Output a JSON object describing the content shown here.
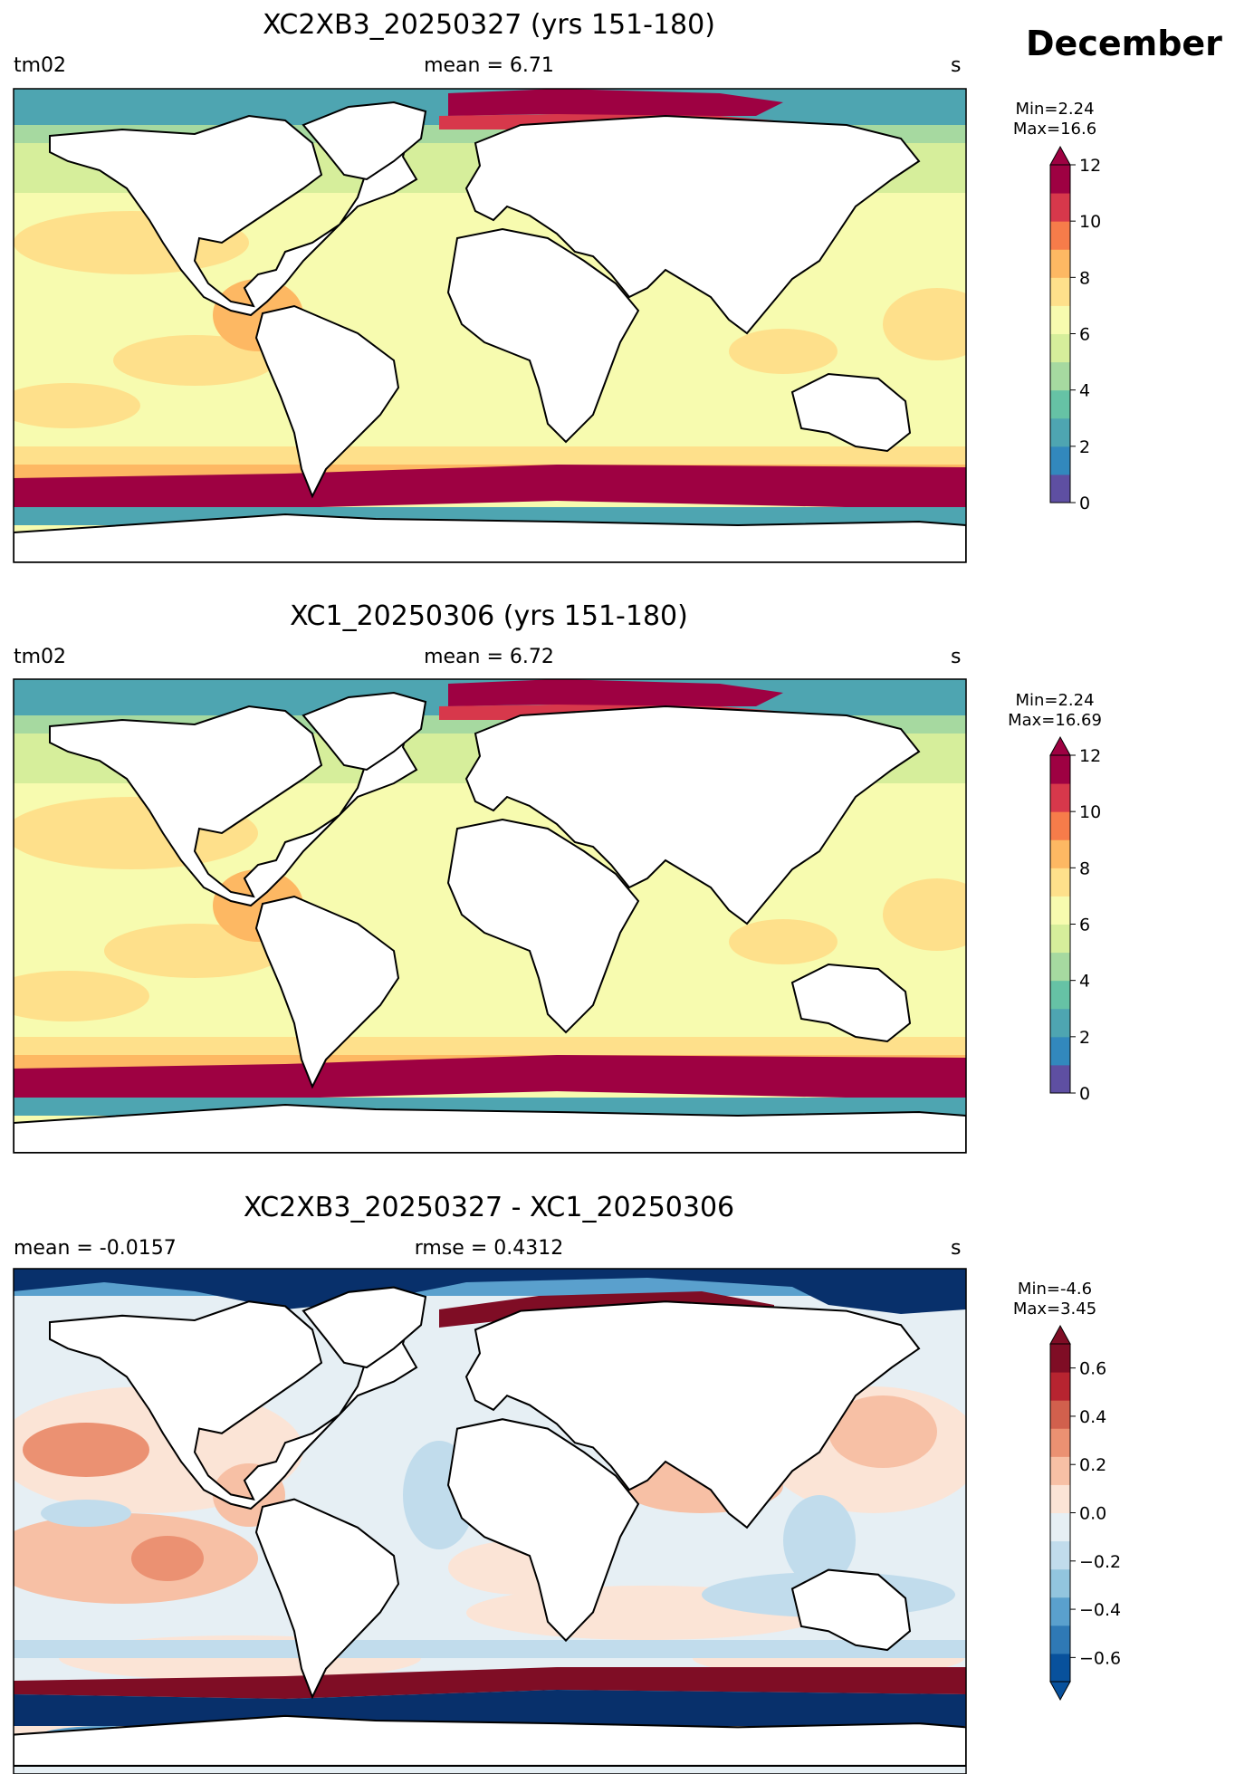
{
  "month": "December",
  "panels": [
    {
      "title": "XC2XB3_20250327 (yrs 151-180)",
      "left_label": "tm02",
      "center_label": "mean = 6.71",
      "right_label": "s",
      "min_label": "Min=2.24",
      "max_label": "Max=16.6",
      "colorbar": {
        "ticks": [
          "0",
          "2",
          "4",
          "6",
          "8",
          "10",
          "12"
        ],
        "range": [
          0,
          12
        ],
        "extend": "max",
        "colors": [
          "#5e4fa2",
          "#3288bd",
          "#4ea5b1",
          "#66c2a5",
          "#a6d9a0",
          "#d6ee9b",
          "#f7fbaf",
          "#fee08b",
          "#fdb863",
          "#f67c4a",
          "#d7384b",
          "#9e0142"
        ]
      }
    },
    {
      "title": "XC1_20250306 (yrs 151-180)",
      "left_label": "tm02",
      "center_label": "mean = 6.72",
      "right_label": "s",
      "min_label": "Min=2.24",
      "max_label": "Max=16.69",
      "colorbar": {
        "ticks": [
          "0",
          "2",
          "4",
          "6",
          "8",
          "10",
          "12"
        ],
        "range": [
          0,
          12
        ],
        "extend": "max",
        "colors": [
          "#5e4fa2",
          "#3288bd",
          "#4ea5b1",
          "#66c2a5",
          "#a6d9a0",
          "#d6ee9b",
          "#f7fbaf",
          "#fee08b",
          "#fdb863",
          "#f67c4a",
          "#d7384b",
          "#9e0142"
        ]
      }
    },
    {
      "title": "XC2XB3_20250327 - XC1_20250306",
      "left_label": "mean = -0.0157",
      "center_label": "rmse = 0.4312",
      "right_label": "s",
      "min_label": "Min=-4.6",
      "max_label": "Max=3.45",
      "colorbar": {
        "ticks": [
          "−0.6",
          "−0.4",
          "−0.2",
          "0.0",
          "0.2",
          "0.4",
          "0.6"
        ],
        "range": [
          -0.7,
          0.7
        ],
        "extend": "both",
        "colors": [
          "#08519c",
          "#2f79b5",
          "#5aa0cd",
          "#92c5de",
          "#c1dcec",
          "#e6eff4",
          "#fbe4d6",
          "#f7c0a5",
          "#eb9172",
          "#d1604d",
          "#b72430",
          "#7f0d25"
        ]
      }
    }
  ],
  "colors": {
    "land": "#ffffff",
    "coast": "#000000",
    "southern_band_panels_1_2": "#9e0142",
    "diff_negative_strong": "#08306b",
    "diff_positive_strong": "#7f0d25"
  }
}
